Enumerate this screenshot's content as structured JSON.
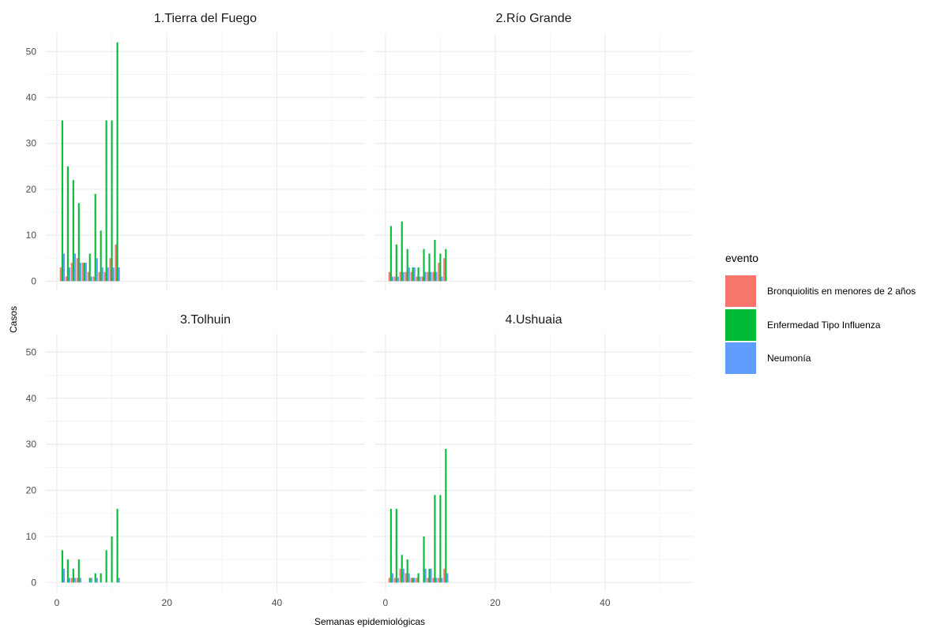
{
  "chart_data": {
    "type": "bar",
    "facet_layout": "2x2",
    "xlabel": "Semanas epidemiológicas",
    "ylabel": "Casos",
    "xlim": [
      -2,
      56
    ],
    "ylim": [
      -2,
      54
    ],
    "x_ticks": [
      0,
      20,
      40
    ],
    "y_ticks": [
      0,
      10,
      20,
      30,
      40,
      50
    ],
    "grid": true,
    "legend": {
      "title": "evento",
      "position": "right",
      "items": [
        {
          "name": "Bronquiolitis en menores de 2 años",
          "color": "#F8766D"
        },
        {
          "name": "Enfermedad Tipo Influenza",
          "color": "#00BA38"
        },
        {
          "name": "Neumonía",
          "color": "#619CFF"
        }
      ]
    },
    "facets": [
      {
        "title": "1.Tierra del Fuego",
        "x": [
          1,
          2,
          3,
          4,
          5,
          6,
          7,
          8,
          9,
          10,
          11
        ],
        "series": [
          {
            "name": "Bronquiolitis en menores de 2 años",
            "values": [
              3,
              1,
              4,
              5,
              4,
              2,
              1,
              2,
              2,
              5,
              8
            ]
          },
          {
            "name": "Enfermedad Tipo Influenza",
            "values": [
              35,
              25,
              22,
              17,
              4,
              6,
              19,
              11,
              35,
              35,
              52
            ]
          },
          {
            "name": "Neumonía",
            "values": [
              6,
              3,
              6,
              4,
              4,
              1,
              5,
              3,
              3,
              3,
              3
            ]
          }
        ]
      },
      {
        "title": "2.Río Grande",
        "x": [
          1,
          2,
          3,
          4,
          5,
          6,
          7,
          8,
          9,
          10,
          11
        ],
        "series": [
          {
            "name": "Bronquiolitis en menores de 2 años",
            "values": [
              2,
              1,
              2,
              2,
              2,
              1,
              1,
              2,
              2,
              4,
              5
            ]
          },
          {
            "name": "Enfermedad Tipo Influenza",
            "values": [
              12,
              8,
              13,
              7,
              3,
              3,
              7,
              6,
              9,
              6,
              7
            ]
          },
          {
            "name": "Neumonía",
            "values": [
              1,
              1,
              2,
              3,
              3,
              1,
              2,
              2,
              2,
              1,
              0
            ]
          }
        ]
      },
      {
        "title": "3.Tolhuin",
        "x": [
          1,
          2,
          3,
          4,
          5,
          6,
          7,
          8,
          9,
          10,
          11
        ],
        "series": [
          {
            "name": "Bronquiolitis en menores de 2 años",
            "values": [
              0,
              0,
              1,
              1,
              0,
              0,
              0,
              0,
              0,
              0,
              0
            ]
          },
          {
            "name": "Enfermedad Tipo Influenza",
            "values": [
              7,
              5,
              3,
              5,
              0,
              1,
              2,
              2,
              7,
              10,
              16
            ]
          },
          {
            "name": "Neumonía",
            "values": [
              3,
              1,
              1,
              1,
              0,
              1,
              1,
              0,
              0,
              0,
              1
            ]
          }
        ]
      },
      {
        "title": "4.Ushuaia",
        "x": [
          1,
          2,
          3,
          4,
          5,
          6,
          7,
          8,
          9,
          10,
          11
        ],
        "series": [
          {
            "name": "Bronquiolitis en menores de 2 años",
            "values": [
              1,
              1,
              3,
              2,
              1,
              1,
              0,
              1,
              1,
              1,
              3
            ]
          },
          {
            "name": "Enfermedad Tipo Influenza",
            "values": [
              16,
              16,
              6,
              5,
              1,
              2,
              10,
              3,
              19,
              19,
              29
            ]
          },
          {
            "name": "Neumonía",
            "values": [
              2,
              1,
              3,
              2,
              1,
              0,
              3,
              3,
              1,
              1,
              2
            ]
          }
        ]
      }
    ]
  }
}
